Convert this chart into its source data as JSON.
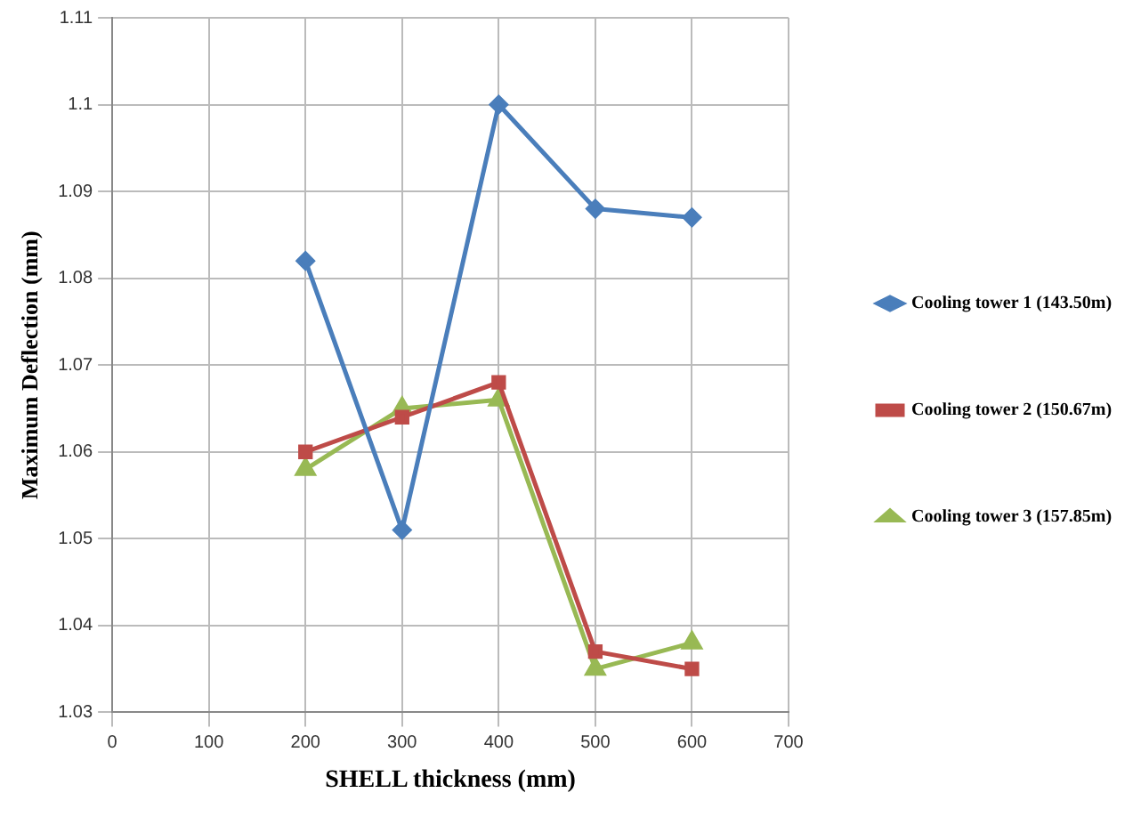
{
  "chart_data": {
    "type": "line",
    "xlabel": "SHELL thickness (mm)",
    "ylabel": "Maximum Deflection (mm)",
    "x": [
      200,
      300,
      400,
      500,
      600
    ],
    "series": [
      {
        "name": "Cooling tower 1 (143.50m)",
        "color": "#4a7ebb",
        "marker": "diamond",
        "values": [
          1.082,
          1.051,
          1.1,
          1.088,
          1.087
        ]
      },
      {
        "name": "Cooling tower 2 (150.67m)",
        "color": "#be4b48",
        "marker": "square",
        "values": [
          1.06,
          1.064,
          1.068,
          1.037,
          1.035
        ]
      },
      {
        "name": "Cooling tower 3 (157.85m)",
        "color": "#98b954",
        "marker": "triangle",
        "values": [
          1.058,
          1.065,
          1.066,
          1.035,
          1.038
        ]
      }
    ],
    "xlim": [
      0,
      700
    ],
    "xticks": [
      0,
      100,
      200,
      300,
      400,
      500,
      600,
      700
    ],
    "ylim": [
      1.03,
      1.11
    ],
    "yticks": [
      1.03,
      1.04,
      1.05,
      1.06,
      1.07,
      1.08,
      1.09,
      1.1,
      1.11
    ],
    "grid": true,
    "legend": "right"
  }
}
